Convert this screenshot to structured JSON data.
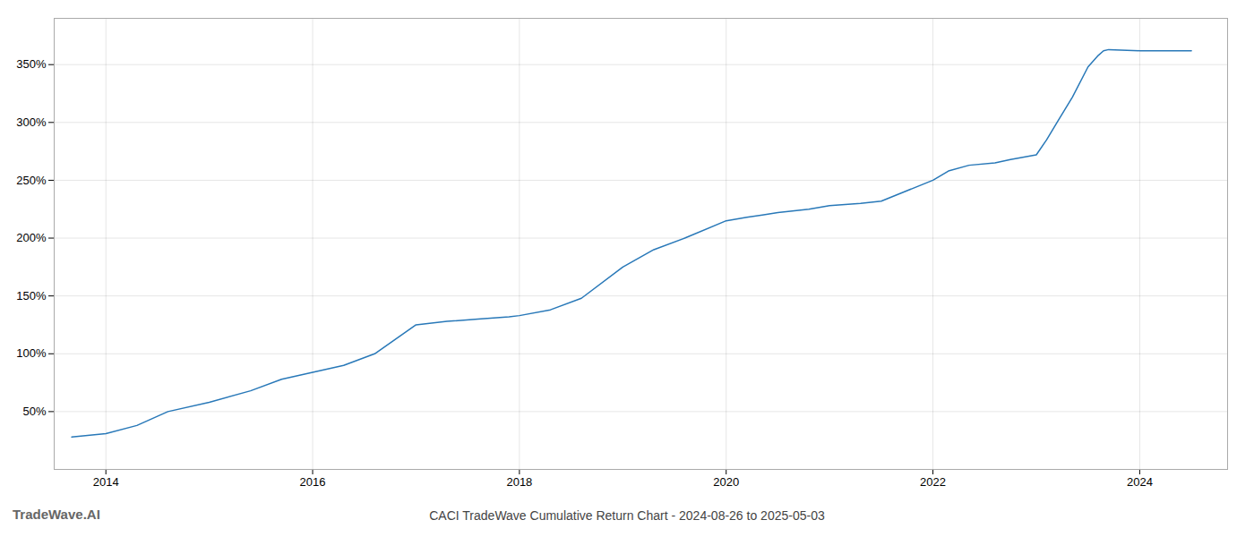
{
  "chart_data": {
    "type": "line",
    "title": "CACI TradeWave Cumulative Return Chart - 2024-08-26 to 2025-05-03",
    "annotations": [
      "TradeWave.AI"
    ],
    "x": [
      2013.67,
      2014.0,
      2014.3,
      2014.6,
      2015.0,
      2015.4,
      2015.7,
      2016.0,
      2016.3,
      2016.6,
      2017.0,
      2017.3,
      2017.6,
      2017.9,
      2018.0,
      2018.3,
      2018.6,
      2019.0,
      2019.3,
      2019.6,
      2020.0,
      2020.2,
      2020.35,
      2020.5,
      2020.8,
      2021.0,
      2021.3,
      2021.5,
      2022.0,
      2022.15,
      2022.35,
      2022.6,
      2022.75,
      2023.0,
      2023.1,
      2023.2,
      2023.35,
      2023.5,
      2023.6,
      2023.65,
      2023.7,
      2024.0,
      2024.5
    ],
    "values": [
      28,
      31,
      38,
      50,
      58,
      68,
      78,
      84,
      90,
      100,
      125,
      128,
      130,
      132,
      133,
      138,
      148,
      175,
      190,
      200,
      215,
      218,
      220,
      222,
      225,
      228,
      230,
      232,
      250,
      258,
      263,
      265,
      268,
      272,
      285,
      300,
      322,
      348,
      358,
      362,
      363,
      362,
      362
    ],
    "color": "#2878b8",
    "xlim": [
      2013.5,
      2024.85
    ],
    "ylim": [
      0,
      390
    ],
    "xticks": [
      2014,
      2016,
      2018,
      2020,
      2022,
      2024
    ],
    "yticks": [
      {
        "value": 50,
        "label": "50%"
      },
      {
        "value": 100,
        "label": "100%"
      },
      {
        "value": 150,
        "label": "150%"
      },
      {
        "value": 200,
        "label": "200%"
      },
      {
        "value": 250,
        "label": "250%"
      },
      {
        "value": 300,
        "label": "300%"
      },
      {
        "value": 350,
        "label": "350%"
      }
    ],
    "grid": true
  }
}
